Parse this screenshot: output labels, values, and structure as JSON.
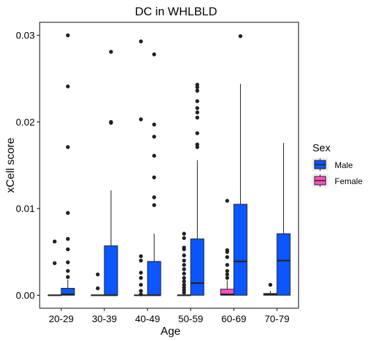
{
  "chart_data": {
    "type": "box",
    "title": "DC in WHLBLD",
    "xlabel": "Age",
    "ylabel": "xCell score",
    "categories": [
      "20-29",
      "30-39",
      "40-49",
      "50-59",
      "60-69",
      "70-79"
    ],
    "ylim": [
      -0.0015,
      0.0315
    ],
    "yticks": [
      0.0,
      0.01,
      0.02,
      0.03
    ],
    "ytick_labels": [
      "0.00",
      "0.01",
      "0.02",
      "0.03"
    ],
    "legend": {
      "title": "Sex",
      "position": "right",
      "entries": [
        {
          "label": "Male",
          "color": "#0b56ff"
        },
        {
          "label": "Female",
          "color": "#ff4fc0"
        }
      ]
    },
    "grid": false,
    "series": [
      {
        "name": "Female",
        "color": "#ff4fc0",
        "boxes": [
          {
            "category": "20-29",
            "q1": 0,
            "median": 0,
            "q3": 0,
            "whisker_low": 0,
            "whisker_high": 0,
            "outliers": [
              0.0062,
              0.0037
            ]
          },
          {
            "category": "30-39",
            "q1": 0,
            "median": 0,
            "q3": 0,
            "whisker_low": 0,
            "whisker_high": 0,
            "outliers": [
              0.0024,
              0.0008
            ]
          },
          {
            "category": "40-49",
            "q1": 0,
            "median": 0,
            "q3": 0,
            "whisker_low": 0,
            "whisker_high": 0,
            "outliers": [
              0.0293,
              0.0203,
              0.0045,
              0.004,
              0.0026,
              0.002,
              0.0012,
              0.0005,
              0.0001
            ]
          },
          {
            "category": "50-59",
            "q1": 0,
            "median": 0,
            "q3": 0,
            "whisker_low": 0,
            "whisker_high": 0,
            "outliers": [
              0.0071,
              0.0066,
              0.0055,
              0.0053,
              0.0046,
              0.004,
              0.0035,
              0.003,
              0.0025,
              0.002,
              0.0016,
              0.0012,
              0.0009,
              0.0006,
              0.0003
            ]
          },
          {
            "category": "60-69",
            "q1": 0,
            "median": 0.0001,
            "q3": 0.0007,
            "whisker_low": 0,
            "whisker_high": 0.0017,
            "outliers": [
              0.0109,
              0.0052,
              0.005,
              0.0044,
              0.0035,
              0.0028,
              0.0024,
              0.002
            ]
          },
          {
            "category": "70-79",
            "q1": 0,
            "median": 0.0001,
            "q3": 0.0002,
            "whisker_low": 0,
            "whisker_high": 0.0005,
            "outliers": [
              0.0012
            ]
          }
        ]
      },
      {
        "name": "Male",
        "color": "#0b56ff",
        "boxes": [
          {
            "category": "20-29",
            "q1": 0,
            "median": 0.0001,
            "q3": 0.0008,
            "whisker_low": 0,
            "whisker_high": 0.0018,
            "outliers": [
              0.03,
              0.0241,
              0.0171,
              0.0095,
              0.0065,
              0.0053,
              0.0038,
              0.0028,
              0.0021
            ]
          },
          {
            "category": "30-39",
            "q1": 0,
            "median": 0,
            "q3": 0.0057,
            "whisker_low": 0,
            "whisker_high": 0.0121,
            "outliers": [
              0.0281,
              0.02,
              0.0199
            ]
          },
          {
            "category": "40-49",
            "q1": 0,
            "median": 0,
            "q3": 0.0039,
            "whisker_low": 0,
            "whisker_high": 0.0071,
            "outliers": [
              0.0278,
              0.0197,
              0.0183,
              0.0161,
              0.0136,
              0.0113,
              0.0104
            ]
          },
          {
            "category": "50-59",
            "q1": 0,
            "median": 0.0014,
            "q3": 0.0065,
            "whisker_low": 0,
            "whisker_high": 0.0156,
            "outliers": [
              0.0243,
              0.024,
              0.0236,
              0.0224,
              0.0216,
              0.0211,
              0.0205,
              0.0187,
              0.0174,
              0.0171
            ]
          },
          {
            "category": "60-69",
            "q1": 0,
            "median": 0.0039,
            "q3": 0.0105,
            "whisker_low": 0,
            "whisker_high": 0.0244,
            "outliers": [
              0.0299
            ]
          },
          {
            "category": "70-79",
            "q1": 0,
            "median": 0.004,
            "q3": 0.0071,
            "whisker_low": 0,
            "whisker_high": 0.0176,
            "outliers": []
          }
        ]
      }
    ]
  }
}
